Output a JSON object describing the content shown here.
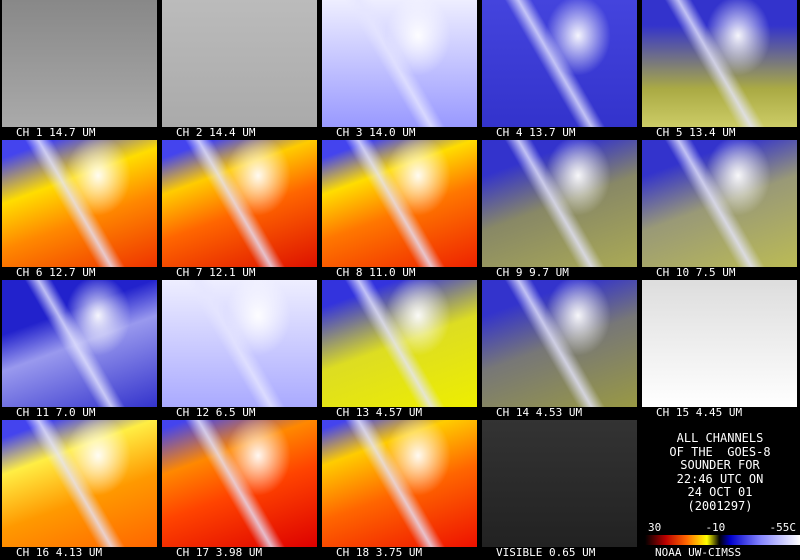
{
  "panels": [
    "CH 1 14.7 UM",
    "CH 2 14.4 UM",
    "CH 3 14.0 UM",
    "CH 4 13.7 UM",
    "CH 5 13.4 UM",
    "CH 6 12.7 UM",
    "CH 7 12.1 UM",
    "CH 8 11.0 UM",
    "CH 9 9.7 UM",
    "CH 10 7.5 UM",
    "CH 11 7.0 UM",
    "CH 12 6.5 UM",
    "CH 13 4.57 UM",
    "CH 14 4.53 UM",
    "CH 15 4.45 UM",
    "CH 16 4.13 UM",
    "CH 17 3.98 UM",
    "CH 18 3.75 UM",
    "VISIBLE 0.65 UM"
  ],
  "info": [
    "ALL CHANNELS",
    "OF THE  GOES-8",
    "SOUNDER FOR",
    "22:46 UTC ON",
    "24 OCT 01",
    "(2001297)"
  ],
  "colorbar": {
    "labels": [
      "30",
      "-10",
      "-55C"
    ]
  },
  "credit": "NOAA UW-CIMSS"
}
